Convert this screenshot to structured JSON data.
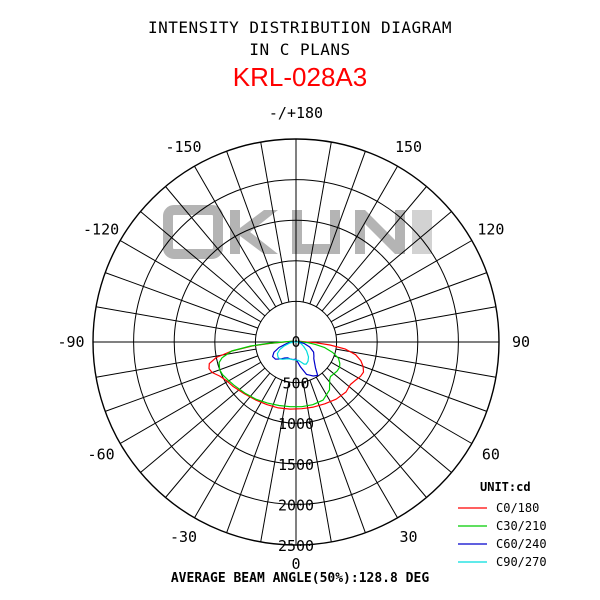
{
  "header": {
    "title_line1": "INTENSITY DISTRIBUTION DIAGRAM",
    "title_line2": "IN C PLANS",
    "model": "KRL-028A3"
  },
  "watermark": {
    "text": "OKUN",
    "color": "#b4b4b4",
    "kind": "logo"
  },
  "footer": {
    "beam_text": "AVERAGE BEAM ANGLE(50%):128.8 DEG"
  },
  "chart_data": {
    "type": "polar-intensity",
    "unit_label": "UNIT:cd",
    "r_ticks": [
      0,
      500,
      1000,
      1500,
      2000,
      2500
    ],
    "r_tick_labels": [
      "0",
      "500",
      "1000",
      "1500",
      "2000",
      "2500"
    ],
    "rmax": 2500,
    "angle_labels": [
      {
        "angle": 180,
        "text": "-/+180"
      },
      {
        "angle": 150,
        "text": "150"
      },
      {
        "angle": -150,
        "text": "-150"
      },
      {
        "angle": 120,
        "text": "120"
      },
      {
        "angle": -120,
        "text": "-120"
      },
      {
        "angle": 90,
        "text": "90"
      },
      {
        "angle": -90,
        "text": "-90"
      },
      {
        "angle": 60,
        "text": "60"
      },
      {
        "angle": -60,
        "text": "-60"
      },
      {
        "angle": 30,
        "text": "30"
      },
      {
        "angle": -30,
        "text": "-30"
      },
      {
        "angle": 0,
        "text": "0"
      }
    ],
    "series": [
      {
        "name": "C0/180",
        "color": "#ff0000",
        "points": [
          [
            -180,
            0
          ],
          [
            -135,
            5
          ],
          [
            -105,
            40
          ],
          [
            -90,
            140
          ],
          [
            -87,
            320
          ],
          [
            -85,
            530
          ],
          [
            -82,
            800
          ],
          [
            -79,
            1000
          ],
          [
            -76,
            1100
          ],
          [
            -73,
            1120
          ],
          [
            -70,
            1100
          ],
          [
            -66,
            1030
          ],
          [
            -61,
            980
          ],
          [
            -55,
            950
          ],
          [
            -45,
            900
          ],
          [
            -35,
            870
          ],
          [
            -25,
            850
          ],
          [
            -15,
            840
          ],
          [
            -5,
            830
          ],
          [
            5,
            825
          ],
          [
            15,
            830
          ],
          [
            25,
            840
          ],
          [
            35,
            860
          ],
          [
            45,
            870
          ],
          [
            52,
            850
          ],
          [
            57,
            870
          ],
          [
            62,
            900
          ],
          [
            66,
            910
          ],
          [
            70,
            880
          ],
          [
            74,
            830
          ],
          [
            78,
            750
          ],
          [
            82,
            610
          ],
          [
            85,
            420
          ],
          [
            88,
            240
          ],
          [
            90,
            130
          ],
          [
            105,
            40
          ],
          [
            135,
            5
          ],
          [
            180,
            0
          ]
        ]
      },
      {
        "name": "C30/210",
        "color": "#00cc00",
        "points": [
          [
            -180,
            0
          ],
          [
            -135,
            5
          ],
          [
            -105,
            40
          ],
          [
            -90,
            160
          ],
          [
            -87,
            350
          ],
          [
            -85,
            560
          ],
          [
            -82,
            800
          ],
          [
            -78,
            930
          ],
          [
            -75,
            980
          ],
          [
            -70,
            1000
          ],
          [
            -66,
            990
          ],
          [
            -61,
            960
          ],
          [
            -55,
            930
          ],
          [
            -45,
            890
          ],
          [
            -35,
            860
          ],
          [
            -25,
            830
          ],
          [
            -15,
            810
          ],
          [
            -5,
            800
          ],
          [
            5,
            800
          ],
          [
            15,
            800
          ],
          [
            25,
            790
          ],
          [
            35,
            720
          ],
          [
            42,
            620
          ],
          [
            45,
            600
          ],
          [
            50,
            610
          ],
          [
            55,
            620
          ],
          [
            60,
            620
          ],
          [
            64,
            600
          ],
          [
            69,
            560
          ],
          [
            74,
            470
          ],
          [
            79,
            360
          ],
          [
            83,
            240
          ],
          [
            87,
            140
          ],
          [
            90,
            80
          ],
          [
            105,
            30
          ],
          [
            135,
            5
          ],
          [
            180,
            0
          ]
        ]
      },
      {
        "name": "C60/240",
        "color": "#0000cc",
        "points": [
          [
            -180,
            0
          ],
          [
            -135,
            5
          ],
          [
            -100,
            20
          ],
          [
            -90,
            50
          ],
          [
            -80,
            120
          ],
          [
            -72,
            220
          ],
          [
            -65,
            300
          ],
          [
            -58,
            340
          ],
          [
            -50,
            330
          ],
          [
            -42,
            280
          ],
          [
            -35,
            240
          ],
          [
            -28,
            220
          ],
          [
            -20,
            220
          ],
          [
            -10,
            220
          ],
          [
            0,
            210
          ],
          [
            10,
            310
          ],
          [
            18,
            420
          ],
          [
            22,
            440
          ],
          [
            27,
            470
          ],
          [
            33,
            490
          ],
          [
            37,
            400
          ],
          [
            42,
            340
          ],
          [
            47,
            300
          ],
          [
            52,
            280
          ],
          [
            60,
            250
          ],
          [
            70,
            180
          ],
          [
            80,
            100
          ],
          [
            90,
            40
          ],
          [
            100,
            15
          ],
          [
            135,
            5
          ],
          [
            180,
            0
          ]
        ]
      },
      {
        "name": "C90/270",
        "color": "#00dddd",
        "points": [
          [
            -180,
            0
          ],
          [
            -135,
            5
          ],
          [
            -100,
            15
          ],
          [
            -90,
            30
          ],
          [
            -80,
            80
          ],
          [
            -72,
            150
          ],
          [
            -65,
            220
          ],
          [
            -58,
            270
          ],
          [
            -50,
            290
          ],
          [
            -44,
            290
          ],
          [
            -38,
            270
          ],
          [
            -30,
            240
          ],
          [
            -22,
            225
          ],
          [
            -15,
            220
          ],
          [
            -8,
            220
          ],
          [
            0,
            220
          ],
          [
            8,
            230
          ],
          [
            15,
            260
          ],
          [
            20,
            290
          ],
          [
            25,
            300
          ],
          [
            32,
            280
          ],
          [
            40,
            240
          ],
          [
            50,
            170
          ],
          [
            60,
            110
          ],
          [
            70,
            70
          ],
          [
            80,
            40
          ],
          [
            90,
            20
          ],
          [
            100,
            8
          ],
          [
            135,
            3
          ],
          [
            180,
            0
          ]
        ]
      }
    ]
  }
}
